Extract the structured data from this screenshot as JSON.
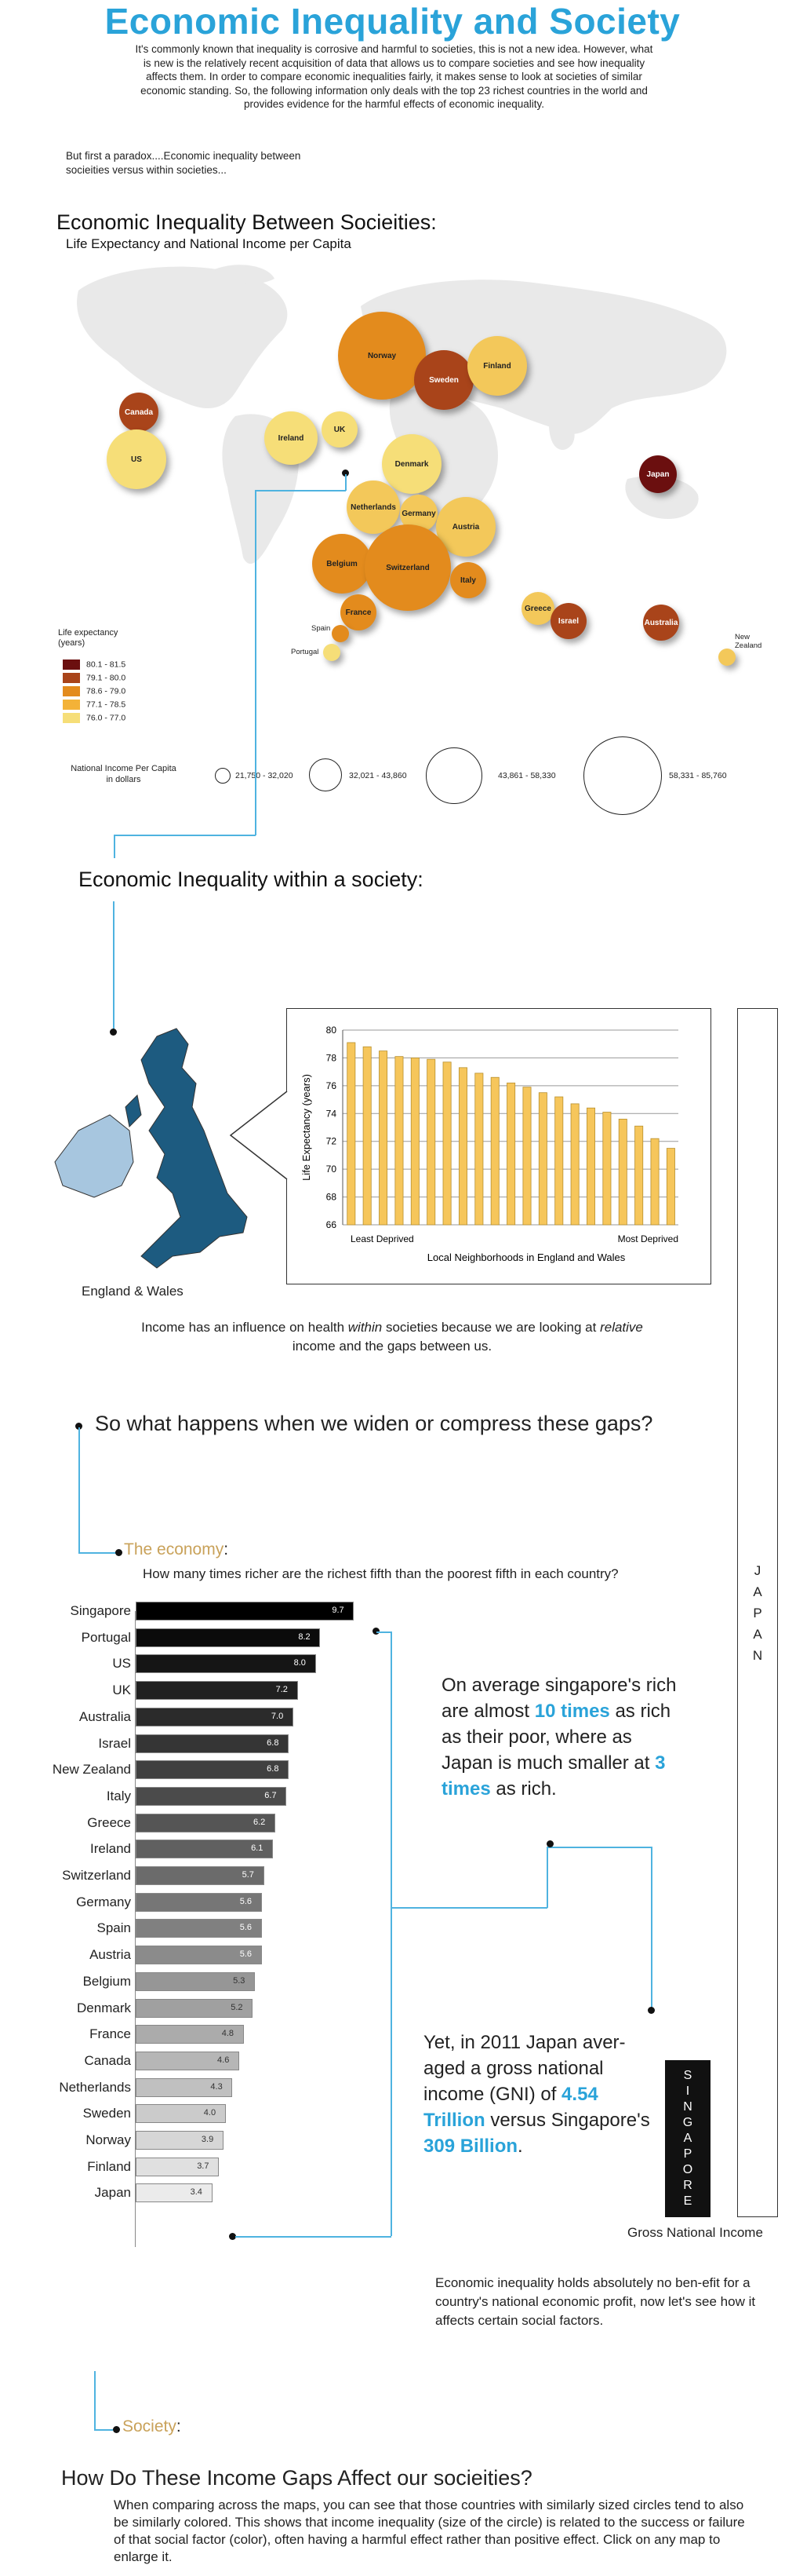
{
  "title": "Economic Inequality and Society",
  "intro": "It's commonly known that inequality is corrosive and harmful to societies, this is not a new idea. However, what is new is the relatively recent acquisition of data that allows us to compare societies and see how inequality affects them. In order to compare economic inequalities fairly, it makes sense to look at societies of similar economic standing. So, the following information only deals with the top 23 richest countries in the world and provides evidence for the harmful effects of economic inequality.",
  "paradox": "But first a paradox....Economic inequality between socieities versus within societies...",
  "between": {
    "heading": "Economic Inequality Between Socieities:",
    "subheading": "Life Expectancy and National Income per Capita"
  },
  "legend": {
    "life_title": "Life expectancy\n(years)",
    "life_ranges": [
      {
        "label": "80.1 - 81.5",
        "color": "#6b0f0f"
      },
      {
        "label": "79.1 - 80.0",
        "color": "#a9441a"
      },
      {
        "label": "78.6 - 79.0",
        "color": "#e38b1d"
      },
      {
        "label": "77.1 - 78.5",
        "color": "#f3b238"
      },
      {
        "label": "76.0 - 77.0",
        "color": "#f6de78"
      }
    ],
    "income_title": "National Income Per Capita\nin dollars",
    "income_ranges": [
      "21,750 - 32,020",
      "32,021 - 43,860",
      "43,861 - 58,330",
      "58,331 - 85,760"
    ]
  },
  "countries": [
    {
      "name": "Canada",
      "band": "79.1 - 80.0",
      "income_band": "32,021 - 43,860"
    },
    {
      "name": "US",
      "band": "76.0 - 77.0",
      "income_band": "43,861 - 58,330"
    },
    {
      "name": "Norway",
      "band": "78.6 - 79.0",
      "income_band": "58,331 - 85,760"
    },
    {
      "name": "Sweden",
      "band": "79.1 - 80.0",
      "income_band": "43,861 - 58,330"
    },
    {
      "name": "Finland",
      "band": "77.1 - 78.5",
      "income_band": "43,861 - 58,330"
    },
    {
      "name": "Ireland",
      "band": "77.1 - 78.5",
      "income_band": "43,861 - 58,330"
    },
    {
      "name": "UK",
      "band": "77.1 - 78.5",
      "income_band": "32,021 - 43,860"
    },
    {
      "name": "Denmark",
      "band": "76.0 - 77.0",
      "income_band": "43,861 - 58,330"
    },
    {
      "name": "Netherlands",
      "band": "77.1 - 78.5",
      "income_band": "43,861 - 58,330"
    },
    {
      "name": "Germany",
      "band": "77.1 - 78.5",
      "income_band": "32,021 - 43,860"
    },
    {
      "name": "Austria",
      "band": "77.1 - 78.5",
      "income_band": "43,861 - 58,330"
    },
    {
      "name": "Belgium",
      "band": "78.6 - 79.0",
      "income_band": "43,861 - 58,330"
    },
    {
      "name": "Switzerland",
      "band": "78.6 - 79.0",
      "income_band": "58,331 - 85,760"
    },
    {
      "name": "Italy",
      "band": "78.6 - 79.0",
      "income_band": "32,021 - 43,860"
    },
    {
      "name": "France",
      "band": "78.6 - 79.0",
      "income_band": "32,021 - 43,860"
    },
    {
      "name": "Spain",
      "band": "78.6 - 79.0",
      "income_band": "21,750 - 32,020"
    },
    {
      "name": "Portugal",
      "band": "76.0 - 77.0",
      "income_band": "21,750 - 32,020"
    },
    {
      "name": "Greece",
      "band": "77.1 - 78.5",
      "income_band": "21,750 - 32,020"
    },
    {
      "name": "Israel",
      "band": "79.1 - 80.0",
      "income_band": "21,750 - 32,020"
    },
    {
      "name": "Japan",
      "band": "80.1 - 81.5",
      "income_band": "21,750 - 32,020"
    },
    {
      "name": "Australia",
      "band": "79.1 - 80.0",
      "income_band": "32,021 - 43,860"
    },
    {
      "name": "New Zealand",
      "band": "77.1 - 78.5",
      "income_band": "21,750 - 32,020"
    }
  ],
  "within": {
    "heading": "Economic Inequality within a society:",
    "map_caption": "England & Wales",
    "note_pre": "Income has an influence on health ",
    "note_em": "within",
    "note_mid": " societies because we are looking at ",
    "note_em2": "relative",
    "note_post": " income and the gaps between us."
  },
  "chart_data": [
    {
      "type": "bar",
      "title": "",
      "xlabel": "Local Neighborhoods in England and Wales",
      "ylabel": "Life Expectancy (years)",
      "ylim": [
        66,
        80
      ],
      "yticks": [
        "66",
        "68",
        "70",
        "72",
        "74",
        "76",
        "78",
        "80"
      ],
      "x_end_labels": [
        "Least Deprived",
        "Most Deprived"
      ],
      "values": [
        79.1,
        78.8,
        78.5,
        78.1,
        78.0,
        77.9,
        77.7,
        77.3,
        76.9,
        76.6,
        76.2,
        75.9,
        75.5,
        75.2,
        74.7,
        74.4,
        74.1,
        73.6,
        73.1,
        72.2,
        71.5
      ],
      "color": "#f6c65b"
    },
    {
      "type": "bar",
      "title": "How many times richer are the richest fifth than the poorest fifth in each country?",
      "categories": [
        "Singapore",
        "Portugal",
        "US",
        "UK",
        "Australia",
        "Israel",
        "New Zealand",
        "Italy",
        "Greece",
        "Ireland",
        "Switzerland",
        "Germany",
        "Spain",
        "Austria",
        "Belgium",
        "Denmark",
        "France",
        "Canada",
        "Netherlands",
        "Sweden",
        "Norway",
        "Finland",
        "Japan"
      ],
      "values": [
        9.7,
        8.2,
        8.0,
        7.2,
        7.0,
        6.8,
        6.8,
        6.7,
        6.2,
        6.1,
        5.7,
        5.6,
        5.6,
        5.6,
        5.3,
        5.2,
        4.8,
        4.6,
        4.3,
        4.0,
        3.9,
        3.7,
        3.4
      ],
      "value_labels": [
        "9.7",
        "8.2",
        "8.0",
        "7.2",
        "7.0",
        "6.8",
        "6.8",
        "6.7",
        "6.2",
        "6.1",
        "5.7",
        "5.6",
        "5.6",
        "5.6",
        "5.3",
        "5.2",
        "4.8",
        "4.6",
        "4.3",
        "4.0",
        "3.9",
        "3.7",
        "3.4"
      ],
      "orientation": "horizontal",
      "xlim": [
        0,
        10
      ]
    }
  ],
  "gaps": {
    "question": "So what happens when we widen or compress these gaps?",
    "economy_label": "The economy",
    "economy_colon": ":",
    "economy_question": "How many times richer are the richest fifth than the poorest fifth in each country?",
    "note1_a": "On average singapore's rich are almost ",
    "note1_hl1": "10 times",
    "note1_b": " as rich as their poor, where as Japan is much smaller at ",
    "note1_hl2": "3 times",
    "note1_c": " as rich.",
    "note2_a": "Yet, in 2011 Japan aver-aged a gross national income (GNI) of ",
    "note2_hl1": "4.54 Trillion",
    "note2_b": " versus Singapore's ",
    "note2_hl2": "309 Billion",
    "note2_c": ".",
    "japan_label": "JAPAN",
    "singapore_label": "SINGAPORE",
    "gni_caption": "Gross National Income",
    "profit_note": "Economic inequality holds absolutely  no ben-efit for a country's national economic profit, now let's see how it affects certain social factors."
  },
  "society": {
    "label": "Society",
    "colon": ":",
    "heading": "How Do These Income Gaps Affect our socieities?",
    "text": "When comparing across the maps, you can see that those countries with similarly sized circles tend to also be similarly colored. This shows that income inequality (size of the circle) is related to the success or failure of that social factor (color), often having a harmful effect rather than positive effect. Click on any map to enlarge it."
  }
}
